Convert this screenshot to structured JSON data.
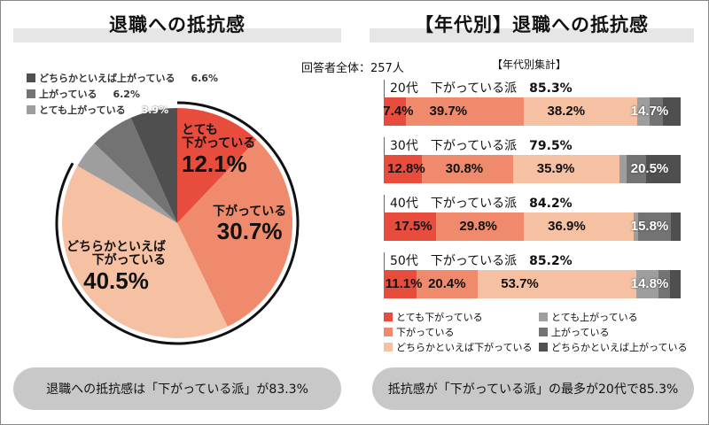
{
  "left": {
    "title": "退職への抵抗感",
    "summary": "退職への抵抗感は「下がっている派」が83.3%"
  },
  "right": {
    "title": "【年代別】退職への抵抗感",
    "subtitle": "【年代別集計】",
    "summary": "抵抗感が「下がっている派」の最多が20代で85.3%"
  },
  "respondents": "回答者全体：257人",
  "colors": {
    "very_down": "#e84c3d",
    "down": "#ef8a6c",
    "somewhat_down": "#f6c1a2",
    "very_up": "#9e9e9e",
    "up": "#737373",
    "somewhat_up": "#4f4f4f"
  },
  "chart_data": [
    {
      "type": "pie",
      "start": "12 o'clock",
      "direction": "clockwise",
      "slices": [
        {
          "label": "とても下がっている",
          "value": 12.1,
          "text": "12.1%",
          "label_line1": "とても",
          "label_line2": "下がっている"
        },
        {
          "label": "下がっている",
          "value": 30.7,
          "text": "30.7%",
          "label_line1": "",
          "label_line2": "下がっている"
        },
        {
          "label": "どちらかといえば下がっている",
          "value": 40.5,
          "text": "40.5%",
          "label_line1": "どちらかといえば",
          "label_line2": "下がっている"
        },
        {
          "label": "とても上がっている",
          "value": 3.9,
          "text": "3.9%"
        },
        {
          "label": "上がっている",
          "value": 6.2,
          "text": "6.2%"
        },
        {
          "label": "どちらかといえば上がっている",
          "value": 6.6,
          "text": "6.6%"
        }
      ]
    },
    {
      "type": "bar",
      "orientation": "horizontal",
      "stacked": true,
      "xlim": [
        0,
        100
      ],
      "categories": [
        "20代",
        "30代",
        "40代",
        "50代"
      ],
      "group_label": "下がっている派",
      "group_totals": [
        "85.3%",
        "79.5%",
        "84.2%",
        "85.2%"
      ],
      "series": [
        {
          "name": "とても下がっている",
          "values": [
            7.4,
            12.8,
            17.5,
            11.1
          ]
        },
        {
          "name": "下がっている",
          "values": [
            39.7,
            30.8,
            29.8,
            20.4
          ]
        },
        {
          "name": "どちらかといえば下がっている",
          "values": [
            38.2,
            35.9,
            36.9,
            53.7
          ]
        },
        {
          "name": "とても上がっている",
          "values": [
            4.3,
            2.4,
            1.5,
            7.4
          ]
        },
        {
          "name": "上がっている",
          "values": [
            4.5,
            6.6,
            11.0,
            3.7
          ]
        },
        {
          "name": "どちらかといえば上がっている",
          "values": [
            5.9,
            11.5,
            3.3,
            3.7
          ]
        }
      ],
      "up_totals": [
        "14.7%",
        "20.5%",
        "15.8%",
        "14.8%"
      ]
    }
  ]
}
